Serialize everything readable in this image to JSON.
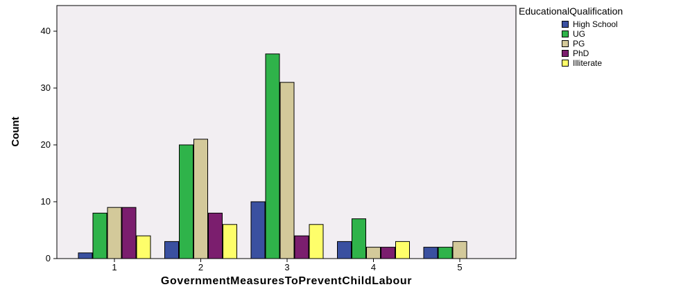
{
  "chart_data": {
    "type": "bar",
    "title": "",
    "xlabel": "GovernmentMeasuresToPreventChildLabour",
    "ylabel": "Count",
    "categories": [
      "1",
      "2",
      "3",
      "4",
      "5"
    ],
    "yticks": [
      "0",
      "10",
      "20",
      "30",
      "40"
    ],
    "ylim": [
      0,
      40
    ],
    "grid": false,
    "legend": {
      "title": "EducationalQualification",
      "placement": "top-right"
    },
    "series": [
      {
        "name": "High School",
        "color": "#3a50a0",
        "values": [
          1,
          3,
          10,
          3,
          2
        ]
      },
      {
        "name": "UG",
        "color": "#2fb34a",
        "values": [
          8,
          20,
          36,
          7,
          2
        ]
      },
      {
        "name": "PG",
        "color": "#d3c99a",
        "values": [
          9,
          21,
          31,
          2,
          3
        ]
      },
      {
        "name": "PhD",
        "color": "#7b1e6e",
        "values": [
          9,
          8,
          4,
          2,
          0
        ]
      },
      {
        "name": "Illiterate",
        "color": "#fefe6a",
        "values": [
          4,
          6,
          6,
          3,
          0
        ]
      }
    ],
    "plot_background": "#f2eef2"
  }
}
